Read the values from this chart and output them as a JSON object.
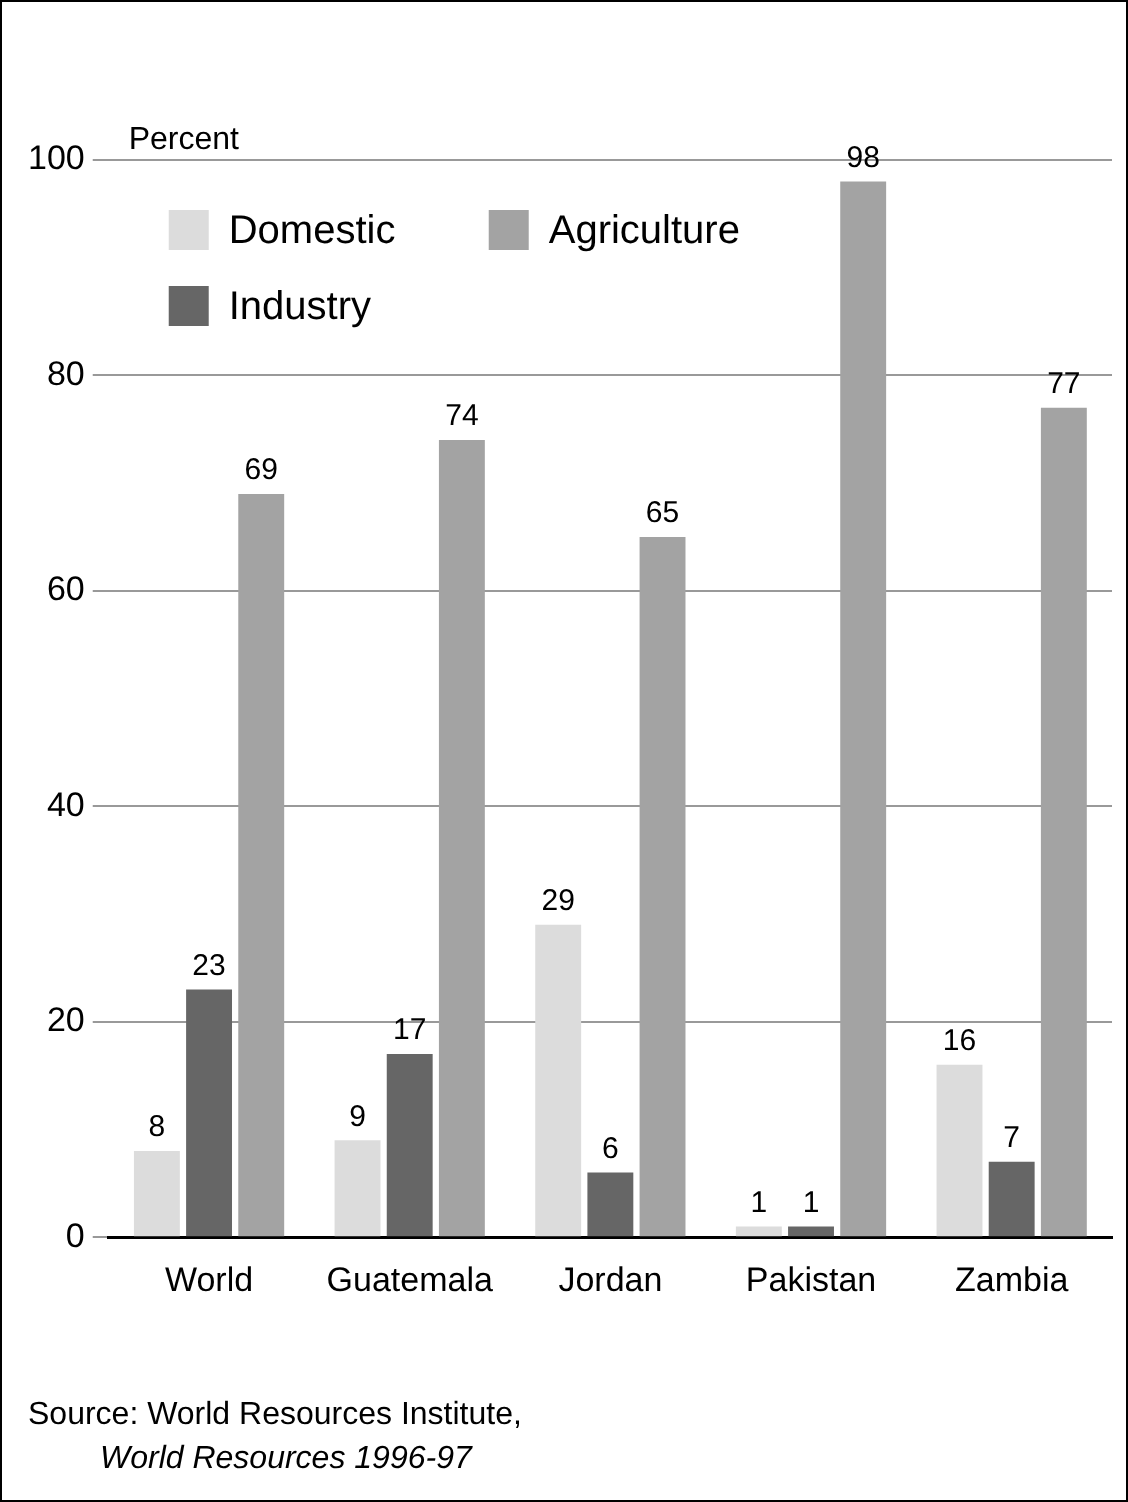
{
  "chart_data": {
    "type": "bar",
    "ylabel": "Percent",
    "categories": [
      "World",
      "Guatemala",
      "Jordan",
      "Pakistan",
      "Zambia"
    ],
    "series": [
      {
        "name": "Domestic",
        "color": "#dcdcdc",
        "values": [
          8,
          9,
          29,
          1,
          16
        ]
      },
      {
        "name": "Industry",
        "color": "#666666",
        "values": [
          23,
          17,
          6,
          1,
          7
        ]
      },
      {
        "name": "Agriculture",
        "color": "#a3a3a3",
        "values": [
          69,
          74,
          65,
          98,
          77
        ]
      }
    ],
    "ylim": [
      0,
      100
    ],
    "yticks": [
      0,
      20,
      40,
      60,
      80,
      100
    ],
    "grid": "y",
    "legend": "top left",
    "data_labels": true,
    "annotations": [
      "Source: World Resources Institute,",
      "World Resources 1996-97"
    ]
  }
}
